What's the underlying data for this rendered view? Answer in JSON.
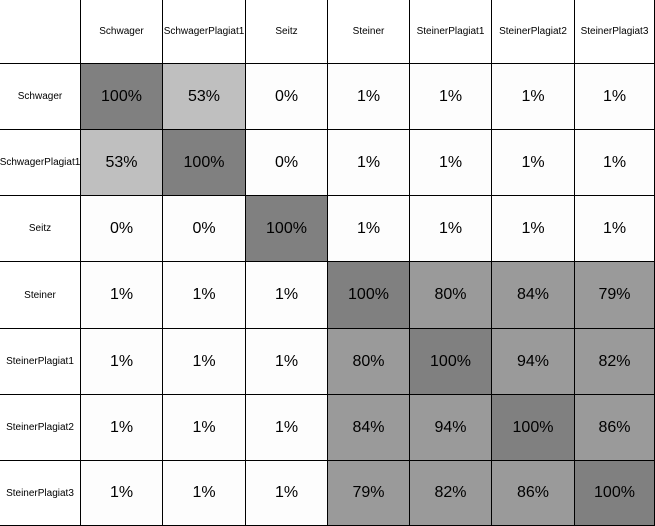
{
  "chart_data": {
    "type": "heatmap",
    "title": "",
    "xlabel": "",
    "ylabel": "",
    "rows": [
      "Schwager",
      "SchwagerPlagiat1",
      "Seitz",
      "Steiner",
      "SteinerPlagiat1",
      "SteinerPlagiat2",
      "SteinerPlagiat3"
    ],
    "columns": [
      "Schwager",
      "SchwagerPlagiat1",
      "Seitz",
      "Steiner",
      "SteinerPlagiat1",
      "SteinerPlagiat2",
      "SteinerPlagiat3"
    ],
    "values": [
      [
        100,
        53,
        0,
        1,
        1,
        1,
        1
      ],
      [
        53,
        100,
        0,
        1,
        1,
        1,
        1
      ],
      [
        0,
        0,
        100,
        1,
        1,
        1,
        1
      ],
      [
        1,
        1,
        1,
        100,
        80,
        84,
        79
      ],
      [
        1,
        1,
        1,
        80,
        100,
        94,
        82
      ],
      [
        1,
        1,
        1,
        84,
        94,
        100,
        86
      ],
      [
        1,
        1,
        1,
        79,
        82,
        86,
        100
      ]
    ],
    "unit": "%",
    "colors": {
      "identical": "#808080",
      "high_similarity": "#9a9a9a",
      "medium_similarity": "#bfbfbf",
      "low_similarity": "#fdfdfd",
      "grid": "#000000"
    }
  }
}
